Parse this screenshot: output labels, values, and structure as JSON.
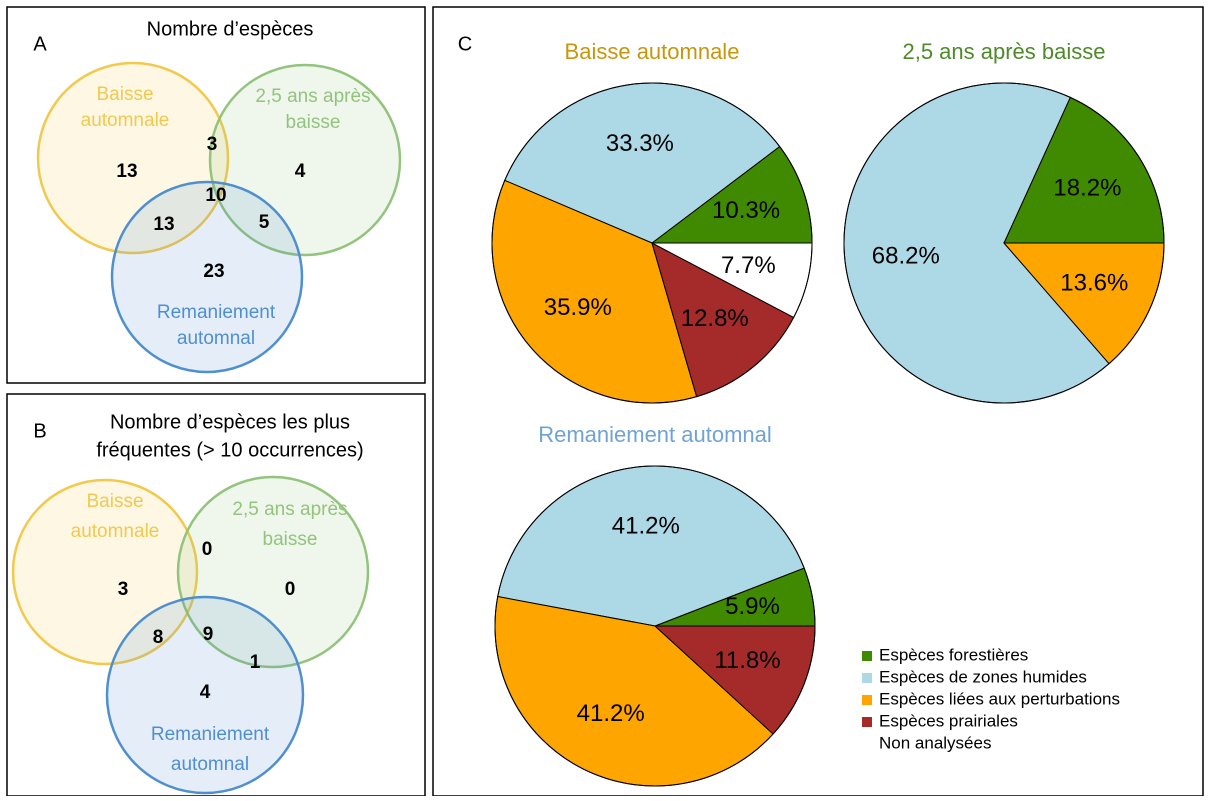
{
  "chart_data": [
    {
      "type": "venn",
      "panel": "A",
      "title": [
        "Nombre d’espèces"
      ],
      "sets": [
        {
          "name": [
            "Baisse",
            "automnale"
          ],
          "color": "#f2c94c"
        },
        {
          "name": [
            "2,5 ans après",
            "baisse"
          ],
          "color": "#93c47d"
        },
        {
          "name": [
            "Remaniement",
            "automnal"
          ],
          "color": "#4f8fd0"
        }
      ],
      "values": [
        13,
        3,
        4,
        10,
        13,
        5,
        23
      ]
    },
    {
      "type": "venn",
      "panel": "B",
      "title": [
        "Nombre d’espèces les plus",
        "fréquentes (> 10 occurrences)"
      ],
      "sets": [
        {
          "name": [
            "Baisse",
            "automnale"
          ],
          "color": "#f2c94c"
        },
        {
          "name": [
            "2,5 ans après",
            "baisse"
          ],
          "color": "#93c47d"
        },
        {
          "name": [
            "Remaniement",
            "automnal"
          ],
          "color": "#4f8fd0"
        }
      ],
      "values": [
        3,
        0,
        0,
        9,
        8,
        1,
        4
      ]
    },
    {
      "type": "pie",
      "panel": "C",
      "title": "Baisse automnale",
      "title_color": "#c8960c",
      "values": [
        10.3,
        33.3,
        35.9,
        12.8,
        7.7
      ],
      "value_labels": [
        "10.3%",
        "33.3%",
        "35.9%",
        "12.8%",
        "7.7%"
      ]
    },
    {
      "type": "pie",
      "title": "2,5 ans après baisse",
      "title_color": "#4e8a2a",
      "values": [
        18.2,
        68.2,
        13.6,
        null,
        null
      ],
      "value_labels": [
        "18.2%",
        "68.2%",
        "13.6%",
        null,
        null
      ]
    },
    {
      "type": "pie",
      "title": "Remaniement automnal",
      "title_color": "#6fa3d6",
      "values": [
        5.9,
        41.2,
        41.2,
        11.8,
        null
      ],
      "value_labels": [
        "5.9%",
        "41.2%",
        "41.2%",
        "11.8%",
        null
      ]
    }
  ],
  "legend": {
    "categories": [
      "Espèces forestières",
      "Espèces de zones humides",
      "Espèces liées aux perturbations",
      "Espèces prairiales",
      "Non analysées"
    ],
    "colors": [
      "#3f8a00",
      "#add8e6",
      "#ffa500",
      "#a52a2a",
      "#ffffff"
    ]
  }
}
